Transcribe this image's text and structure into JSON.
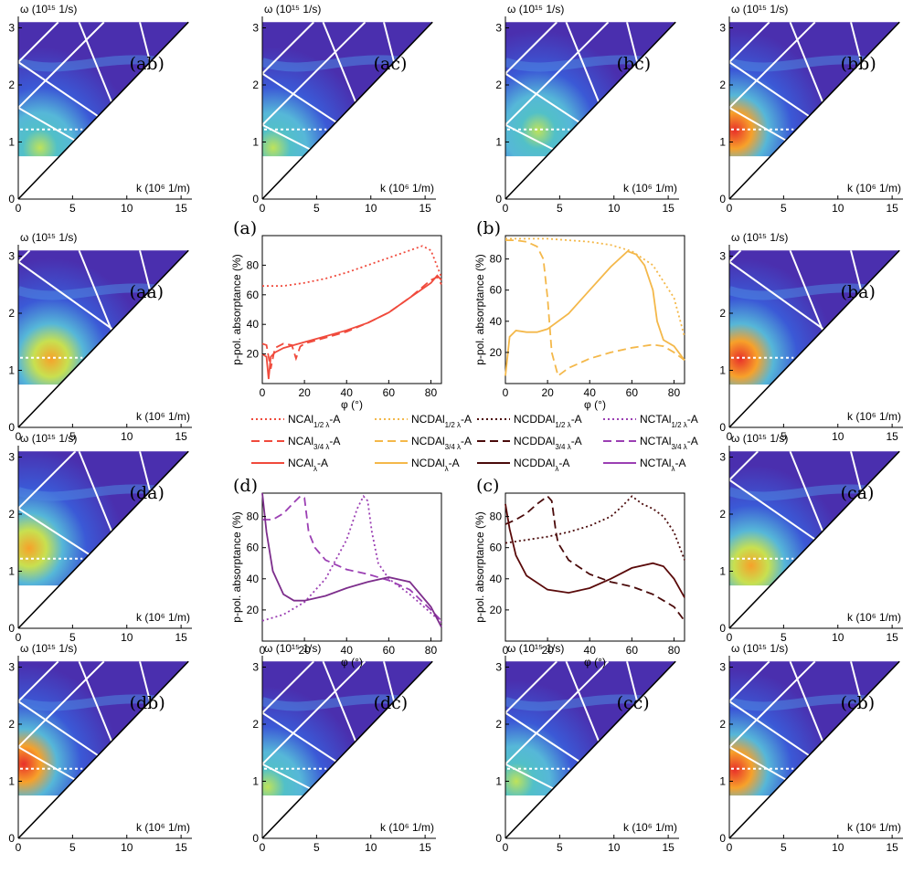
{
  "chart_data": [
    {
      "type": "heatmap",
      "panel": "ab",
      "label": "(ab)",
      "ylabel": "ω (10¹⁵ 1/s)",
      "xlabel": "k (10⁶ 1/m)",
      "xticks": [
        "0",
        "5",
        "10",
        "15"
      ],
      "yticks": [
        "0",
        "1",
        "2",
        "3"
      ],
      "xlim": [
        0,
        16
      ],
      "ylim": [
        0,
        3.2
      ],
      "hot": {
        "k": 2,
        "w": 0.9,
        "strength": 0.55
      },
      "grid_omega": [
        1.6,
        2.4
      ]
    },
    {
      "type": "heatmap",
      "panel": "ac",
      "label": "(ac)",
      "ylabel": "ω (10¹⁵ 1/s)",
      "xlabel": "k (10⁶ 1/m)",
      "xticks": [
        "0",
        "5",
        "10",
        "15"
      ],
      "yticks": [
        "0",
        "1",
        "2",
        "3"
      ],
      "xlim": [
        0,
        16
      ],
      "ylim": [
        0,
        3.2
      ],
      "hot": {
        "k": 1,
        "w": 0.9,
        "strength": 0.5
      },
      "grid_omega": [
        1.3,
        2.2
      ]
    },
    {
      "type": "heatmap",
      "panel": "bc",
      "label": "(bc)",
      "ylabel": "ω (10¹⁵ 1/s)",
      "xlabel": "k (10⁶ 1/m)",
      "xticks": [
        "0",
        "5",
        "10",
        "15"
      ],
      "yticks": [
        "0",
        "1",
        "2",
        "3"
      ],
      "xlim": [
        0,
        16
      ],
      "ylim": [
        0,
        3.2
      ],
      "hot": {
        "k": 3,
        "w": 1.2,
        "strength": 0.65
      },
      "grid_omega": [
        1.3,
        2.2
      ]
    },
    {
      "type": "heatmap",
      "panel": "bb",
      "label": "(bb)",
      "ylabel": "ω (10¹⁵ 1/s)",
      "xlabel": "k (10⁶ 1/m)",
      "xticks": [
        "0",
        "5",
        "10",
        "15"
      ],
      "yticks": [
        "0",
        "1",
        "2",
        "3"
      ],
      "xlim": [
        0,
        16
      ],
      "ylim": [
        0,
        3.2
      ],
      "hot": {
        "k": 0.5,
        "w": 1.2,
        "strength": 0.95
      },
      "grid_omega": [
        1.6,
        2.4
      ]
    },
    {
      "type": "heatmap",
      "panel": "aa",
      "label": "(aa)",
      "ylabel": "ω (10¹⁵ 1/s)",
      "xlabel": "k (10⁶ 1/m)",
      "xticks": [
        "0",
        "5",
        "10",
        "15"
      ],
      "yticks": [
        "0",
        "1",
        "2",
        "3"
      ],
      "xlim": [
        0,
        16
      ],
      "ylim": [
        0,
        3.2
      ],
      "hot": {
        "k": 3,
        "w": 1.2,
        "strength": 0.8
      },
      "grid_omega": [
        2.9
      ]
    },
    {
      "type": "heatmap",
      "panel": "ba",
      "label": "(ba)",
      "ylabel": "ω (10¹⁵ 1/s)",
      "xlabel": "k (10⁶ 1/m)",
      "xticks": [
        "0",
        "5",
        "10",
        "15"
      ],
      "yticks": [
        "0",
        "1",
        "2",
        "3"
      ],
      "xlim": [
        0,
        16
      ],
      "ylim": [
        0,
        3.2
      ],
      "hot": {
        "k": 1,
        "w": 1.2,
        "strength": 1.0
      },
      "grid_omega": [
        2.9
      ]
    },
    {
      "type": "heatmap",
      "panel": "da",
      "label": "(da)",
      "ylabel": "ω (10¹⁵ 1/s)",
      "xlabel": "k (10⁶ 1/m)",
      "xticks": [
        "0",
        "5",
        "10",
        "15"
      ],
      "yticks": [
        "0",
        "1",
        "2",
        "3"
      ],
      "xlim": [
        0,
        16
      ],
      "ylim": [
        0,
        3.2
      ],
      "hot": {
        "k": 1,
        "w": 1.4,
        "strength": 0.85
      },
      "grid_omega": [
        2.1
      ]
    },
    {
      "type": "heatmap",
      "panel": "ca",
      "label": "(ca)",
      "ylabel": "ω (10¹⁵ 1/s)",
      "xlabel": "k (10⁶ 1/m)",
      "xticks": [
        "0",
        "5",
        "10",
        "15"
      ],
      "yticks": [
        "0",
        "1",
        "2",
        "3"
      ],
      "xlim": [
        0,
        16
      ],
      "ylim": [
        0,
        3.2
      ],
      "hot": {
        "k": 2,
        "w": 1.1,
        "strength": 0.9
      },
      "grid_omega": [
        2.6
      ]
    },
    {
      "type": "heatmap",
      "panel": "db",
      "label": "(db)",
      "ylabel": "ω (10¹⁵ 1/s)",
      "xlabel": "k (10⁶ 1/m)",
      "xticks": [
        "0",
        "5",
        "10",
        "15"
      ],
      "yticks": [
        "0",
        "1",
        "2",
        "3"
      ],
      "xlim": [
        0,
        16
      ],
      "ylim": [
        0,
        3.2
      ],
      "hot": {
        "k": 0.5,
        "w": 1.3,
        "strength": 0.95
      },
      "grid_omega": [
        1.6,
        2.4
      ]
    },
    {
      "type": "heatmap",
      "panel": "dc",
      "label": "(dc)",
      "ylabel": "ω (10¹⁵ 1/s)",
      "xlabel": "k (10⁶ 1/m)",
      "xticks": [
        "0",
        "5",
        "10",
        "15"
      ],
      "yticks": [
        "0",
        "1",
        "2",
        "3"
      ],
      "xlim": [
        0,
        16
      ],
      "ylim": [
        0,
        3.2
      ],
      "hot": {
        "k": 0.5,
        "w": 0.9,
        "strength": 0.6
      },
      "grid_omega": [
        1.3,
        2.2
      ]
    },
    {
      "type": "heatmap",
      "panel": "cc",
      "label": "(cc)",
      "ylabel": "ω (10¹⁵ 1/s)",
      "xlabel": "k (10⁶ 1/m)",
      "xticks": [
        "0",
        "5",
        "10",
        "15"
      ],
      "yticks": [
        "0",
        "1",
        "2",
        "3"
      ],
      "xlim": [
        0,
        16
      ],
      "ylim": [
        0,
        3.2
      ],
      "hot": {
        "k": 1,
        "w": 1.0,
        "strength": 0.55
      },
      "grid_omega": [
        1.3,
        2.2
      ]
    },
    {
      "type": "heatmap",
      "panel": "cb",
      "label": "(cb)",
      "ylabel": "ω (10¹⁵ 1/s)",
      "xlabel": "k (10⁶ 1/m)",
      "xticks": [
        "0",
        "5",
        "10",
        "15"
      ],
      "yticks": [
        "0",
        "1",
        "2",
        "3"
      ],
      "xlim": [
        0,
        16
      ],
      "ylim": [
        0,
        3.2
      ],
      "hot": {
        "k": 0.5,
        "w": 1.2,
        "strength": 0.95
      },
      "grid_omega": [
        1.6,
        2.4
      ]
    },
    {
      "type": "line",
      "panel": "a",
      "label": "(a)",
      "xlabel": "φ (°)",
      "ylabel": "p-pol. absorptance (%)",
      "xlim": [
        0,
        85
      ],
      "ylim": [
        0,
        100
      ],
      "xticks": [
        "0",
        "20",
        "40",
        "60",
        "80"
      ],
      "yticks": [
        "20",
        "40",
        "60",
        "80"
      ],
      "series": [
        {
          "name": "NCAl1/2λ-A",
          "style": "dotted",
          "color": "#f04a3c",
          "x": [
            0,
            10,
            20,
            30,
            40,
            50,
            60,
            70,
            76,
            80,
            85
          ],
          "y": [
            66,
            66,
            68,
            71,
            75,
            80,
            85,
            90,
            93,
            90,
            72
          ]
        },
        {
          "name": "NCAl3/4λ-A",
          "style": "dashed",
          "color": "#f04a3c",
          "x": [
            0,
            2,
            4,
            6,
            10,
            14,
            16,
            18,
            20,
            30,
            40,
            50,
            60,
            70,
            80,
            83,
            85
          ],
          "y": [
            27,
            26,
            10,
            24,
            27,
            26,
            17,
            25,
            27,
            31,
            35,
            41,
            48,
            58,
            70,
            72,
            67
          ]
        },
        {
          "name": "NCAlλ-A",
          "style": "solid",
          "color": "#f04a3c",
          "x": [
            0,
            2,
            3,
            4,
            6,
            10,
            20,
            30,
            40,
            50,
            60,
            70,
            80,
            83,
            85
          ],
          "y": [
            20,
            18,
            3,
            18,
            21,
            24,
            28,
            32,
            36,
            41,
            48,
            58,
            68,
            73,
            70
          ]
        }
      ]
    },
    {
      "type": "line",
      "panel": "b",
      "label": "(b)",
      "xlabel": "φ (°)",
      "ylabel": "p-pol. absorptance (%)",
      "xlim": [
        0,
        85
      ],
      "ylim": [
        0,
        95
      ],
      "xticks": [
        "0",
        "20",
        "40",
        "60",
        "80"
      ],
      "yticks": [
        "20",
        "40",
        "60",
        "80"
      ],
      "series": [
        {
          "name": "NCDAl1/2λ-A",
          "style": "dotted",
          "color": "#f4b84a",
          "x": [
            0,
            10,
            20,
            30,
            40,
            50,
            60,
            70,
            80,
            85
          ],
          "y": [
            93,
            93,
            93,
            92,
            91,
            89,
            85,
            76,
            55,
            30
          ]
        },
        {
          "name": "NCDAl3/4λ-A",
          "style": "dashed",
          "color": "#f4b84a",
          "x": [
            0,
            5,
            10,
            15,
            18,
            20,
            22,
            25,
            30,
            40,
            50,
            60,
            70,
            75,
            80,
            85
          ],
          "y": [
            92,
            92,
            91,
            88,
            80,
            55,
            20,
            5,
            10,
            16,
            20,
            23,
            25,
            24,
            20,
            15
          ]
        },
        {
          "name": "NCDAlλ-A",
          "style": "solid",
          "color": "#f4b84a",
          "x": [
            0,
            2,
            5,
            10,
            15,
            20,
            30,
            40,
            50,
            58,
            62,
            66,
            70,
            72,
            75,
            80,
            85
          ],
          "y": [
            5,
            30,
            34,
            33,
            33,
            35,
            45,
            60,
            75,
            85,
            83,
            76,
            60,
            40,
            28,
            24,
            15
          ]
        }
      ]
    },
    {
      "type": "line",
      "panel": "d",
      "label": "(d)",
      "xlabel": "φ (°)",
      "ylabel": "p-pol. absorptance (%)",
      "xlim": [
        0,
        85
      ],
      "ylim": [
        0,
        95
      ],
      "xticks": [
        "0",
        "20",
        "40",
        "60",
        "80"
      ],
      "yticks": [
        "20",
        "40",
        "60",
        "80"
      ],
      "series": [
        {
          "name": "NCTAl1/2λ-A",
          "style": "dotted",
          "color": "#9b3fb3",
          "x": [
            0,
            10,
            20,
            30,
            40,
            45,
            48,
            50,
            52,
            55,
            60,
            70,
            80,
            85
          ],
          "y": [
            13,
            17,
            25,
            40,
            65,
            85,
            93,
            90,
            70,
            50,
            40,
            30,
            18,
            12
          ]
        },
        {
          "name": "NCTAl3/4λ-A",
          "style": "dashed",
          "color": "#9b3fb3",
          "x": [
            0,
            5,
            10,
            15,
            18,
            20,
            22,
            25,
            30,
            40,
            50,
            60,
            70,
            80,
            85
          ],
          "y": [
            78,
            78,
            82,
            89,
            93,
            92,
            70,
            60,
            52,
            46,
            43,
            39,
            33,
            20,
            13
          ]
        },
        {
          "name": "NCTAlλ-A",
          "style": "solid",
          "color": "#7d2e8c",
          "x": [
            0,
            2,
            5,
            10,
            15,
            20,
            30,
            40,
            50,
            60,
            70,
            80,
            85
          ],
          "y": [
            95,
            70,
            45,
            30,
            26,
            26,
            29,
            34,
            38,
            41,
            38,
            22,
            9
          ]
        }
      ]
    },
    {
      "type": "line",
      "panel": "c",
      "label": "(c)",
      "xlabel": "φ (°)",
      "ylabel": "p-pol. absorptance (%)",
      "xlim": [
        0,
        85
      ],
      "ylim": [
        0,
        95
      ],
      "xticks": [
        "0",
        "20",
        "40",
        "60",
        "80"
      ],
      "yticks": [
        "20",
        "40",
        "60",
        "80"
      ],
      "series": [
        {
          "name": "NCDDAl1/2λ-A",
          "style": "dotted",
          "color": "#4a0a0a",
          "x": [
            0,
            10,
            20,
            30,
            40,
            50,
            55,
            60,
            65,
            70,
            75,
            80,
            85
          ],
          "y": [
            63,
            65,
            67,
            70,
            74,
            80,
            86,
            93,
            88,
            85,
            80,
            70,
            52
          ]
        },
        {
          "name": "NCDDAl3/4λ-A",
          "style": "dashed",
          "color": "#4a0a0a",
          "x": [
            0,
            5,
            10,
            15,
            20,
            22,
            24,
            25,
            30,
            40,
            50,
            60,
            70,
            80,
            85
          ],
          "y": [
            75,
            78,
            82,
            88,
            93,
            90,
            70,
            63,
            52,
            43,
            38,
            35,
            30,
            22,
            13
          ]
        },
        {
          "name": "NCDDAlλ-A",
          "style": "solid",
          "color": "#5a0a0a",
          "x": [
            0,
            2,
            5,
            10,
            20,
            30,
            40,
            50,
            60,
            70,
            75,
            80,
            85
          ],
          "y": [
            88,
            72,
            55,
            42,
            33,
            31,
            34,
            40,
            47,
            50,
            48,
            40,
            28
          ]
        }
      ]
    }
  ],
  "legend": {
    "row1": [
      "NCAl",
      "NCDAl",
      "NCDDAl",
      "NCTAl"
    ],
    "sub1": "1/2 λ",
    "sub2": "3/4 λ",
    "sub3": "λ",
    "suffix": "-A"
  },
  "colors": {
    "red": "#f04a3c",
    "orange": "#f4b84a",
    "maroon": "#4a0a0a",
    "purple": "#9b3fb3"
  }
}
